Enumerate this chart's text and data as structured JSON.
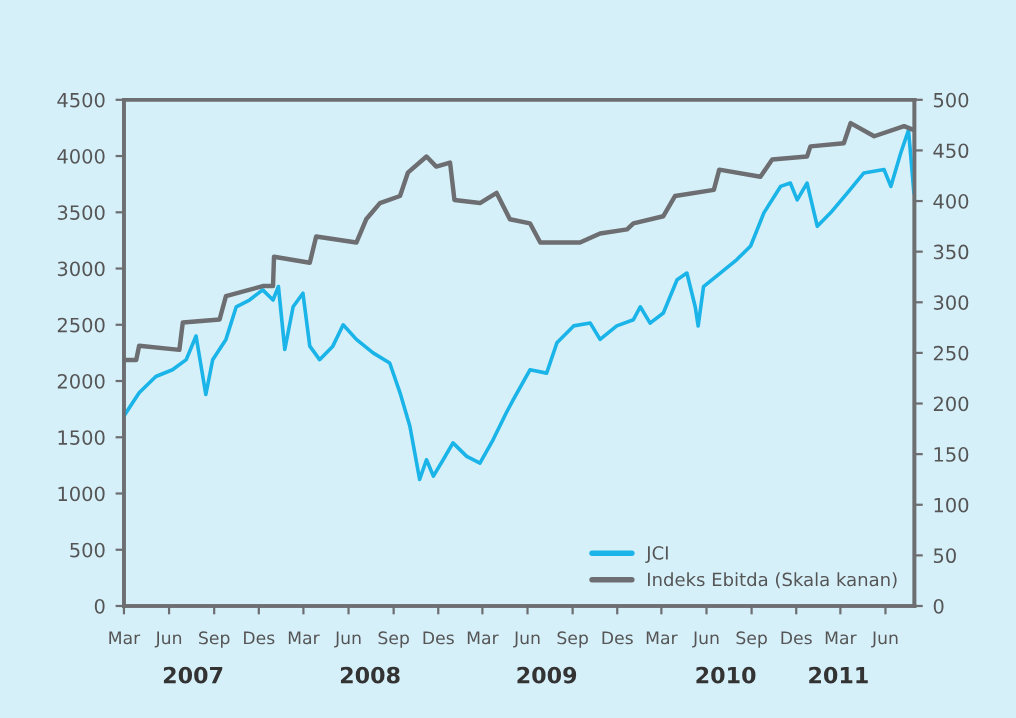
{
  "chart_data": {
    "type": "line",
    "legend": "bottom right",
    "grid": false,
    "xlim": [
      "2007-03-01",
      "2011-07-30"
    ],
    "xticks": [
      {
        "value": "2007-03-01",
        "label": "Mar"
      },
      {
        "value": "2007-06-01",
        "label": "Jun"
      },
      {
        "value": "2007-09-01",
        "label": "Sep"
      },
      {
        "value": "2007-12-01",
        "label": "Des"
      },
      {
        "value": "2008-03-01",
        "label": "Mar"
      },
      {
        "value": "2008-06-01",
        "label": "Jun"
      },
      {
        "value": "2008-09-01",
        "label": "Sep"
      },
      {
        "value": "2008-12-01",
        "label": "Des"
      },
      {
        "value": "2009-03-01",
        "label": "Mar"
      },
      {
        "value": "2009-06-01",
        "label": "Jun"
      },
      {
        "value": "2009-09-01",
        "label": "Sep"
      },
      {
        "value": "2009-12-01",
        "label": "Des"
      },
      {
        "value": "2010-03-01",
        "label": "Mar"
      },
      {
        "value": "2010-06-01",
        "label": "Jun"
      },
      {
        "value": "2010-09-01",
        "label": "Sep"
      },
      {
        "value": "2010-12-01",
        "label": "Des"
      },
      {
        "value": "2011-03-01",
        "label": "Mar"
      },
      {
        "value": "2011-06-01",
        "label": "Jun"
      }
    ],
    "x2lim": [
      "2007-03-01",
      "2011-07-30"
    ],
    "x2ticks": [
      {
        "value": "2007-07-20",
        "label": "2007"
      },
      {
        "value": "2008-07-15",
        "label": "2008"
      },
      {
        "value": "2009-07-10",
        "label": "2009"
      },
      {
        "value": "2010-07-10",
        "label": "2010"
      },
      {
        "value": "2011-02-25",
        "label": "2011"
      }
    ],
    "ylim": [
      0,
      4500
    ],
    "yticks": [
      0,
      500,
      1000,
      1500,
      2000,
      2500,
      3000,
      3500,
      4000,
      4500
    ],
    "y2lim": [
      0,
      500
    ],
    "y2ticks": [
      0,
      50,
      100,
      150,
      200,
      250,
      300,
      350,
      400,
      450,
      500
    ],
    "series": [
      {
        "name": "JCI",
        "color": "#1ab4e8",
        "x": [
          "2007-03-01",
          "2007-04-01",
          "2007-05-05",
          "2007-06-08",
          "2007-07-06",
          "2007-07-26",
          "2007-08-15",
          "2007-08-29",
          "2007-09-25",
          "2007-10-16",
          "2007-11-12",
          "2007-12-09",
          "2007-12-30",
          "2008-01-10",
          "2008-01-23",
          "2008-02-09",
          "2008-02-29",
          "2008-03-14",
          "2008-04-03",
          "2008-04-30",
          "2008-05-21",
          "2008-06-17",
          "2008-07-21",
          "2008-08-24",
          "2008-09-14",
          "2008-10-04",
          "2008-10-24",
          "2008-11-07",
          "2008-11-21",
          "2008-12-11",
          "2008-12-31",
          "2009-01-28",
          "2009-02-24",
          "2009-03-23",
          "2009-04-19",
          "2009-05-03",
          "2009-06-06",
          "2009-07-10",
          "2009-07-31",
          "2009-09-03",
          "2009-10-07",
          "2009-10-27",
          "2009-11-30",
          "2010-01-03",
          "2010-01-17",
          "2010-02-06",
          "2010-03-05",
          "2010-04-02",
          "2010-04-22",
          "2010-05-09",
          "2010-05-15",
          "2010-05-26",
          "2010-06-29",
          "2010-08-02",
          "2010-08-30",
          "2010-09-26",
          "2010-10-30",
          "2010-11-19",
          "2010-12-03",
          "2010-12-23",
          "2011-01-13",
          "2011-02-09",
          "2011-03-15",
          "2011-04-18",
          "2011-05-29",
          "2011-06-12",
          "2011-07-02",
          "2011-07-18",
          "2011-07-29"
        ],
        "values": [
          1690,
          1895,
          2040,
          2100,
          2190,
          2400,
          1880,
          2190,
          2370,
          2660,
          2720,
          2810,
          2720,
          2840,
          2280,
          2660,
          2780,
          2310,
          2190,
          2310,
          2500,
          2370,
          2250,
          2160,
          1895,
          1600,
          1125,
          1300,
          1155,
          1300,
          1450,
          1330,
          1270,
          1480,
          1720,
          1835,
          2100,
          2070,
          2340,
          2490,
          2515,
          2370,
          2490,
          2545,
          2660,
          2515,
          2605,
          2900,
          2960,
          2660,
          2490,
          2840,
          2960,
          3080,
          3200,
          3495,
          3730,
          3760,
          3610,
          3760,
          3375,
          3495,
          3670,
          3850,
          3880,
          3730,
          4025,
          4230,
          3670
        ]
      },
      {
        "name": "Indeks Ebitda (Skala kanan)",
        "color": "#6d6e71",
        "axis": "y2",
        "x": [
          "2007-03-01",
          "2007-03-26",
          "2007-04-01",
          "2007-06-22",
          "2007-06-29",
          "2007-09-12",
          "2007-09-25",
          "2007-12-09",
          "2007-12-30",
          "2008-01-01",
          "2008-03-14",
          "2008-03-27",
          "2008-06-17",
          "2008-07-07",
          "2008-08-04",
          "2008-09-14",
          "2008-09-30",
          "2008-11-07",
          "2008-11-27",
          "2008-12-25",
          "2009-01-03",
          "2009-02-24",
          "2009-03-30",
          "2009-04-26",
          "2009-06-06",
          "2009-06-27",
          "2009-09-16",
          "2009-10-27",
          "2009-12-21",
          "2010-01-03",
          "2010-03-05",
          "2010-03-29",
          "2010-06-16",
          "2010-06-27",
          "2010-09-19",
          "2010-10-13",
          "2010-12-23",
          "2010-12-30",
          "2011-03-08",
          "2011-03-22",
          "2011-05-09",
          "2011-07-09",
          "2011-07-29"
        ],
        "values": [
          243,
          243,
          257,
          253,
          280,
          283,
          306,
          316,
          316,
          345,
          339,
          365,
          359,
          382,
          398,
          405,
          428,
          444,
          434,
          438,
          401,
          398,
          408,
          382,
          378,
          359,
          359,
          368,
          372,
          378,
          385,
          405,
          411,
          431,
          424,
          441,
          444,
          454,
          457,
          477,
          464,
          474,
          470
        ]
      }
    ]
  }
}
